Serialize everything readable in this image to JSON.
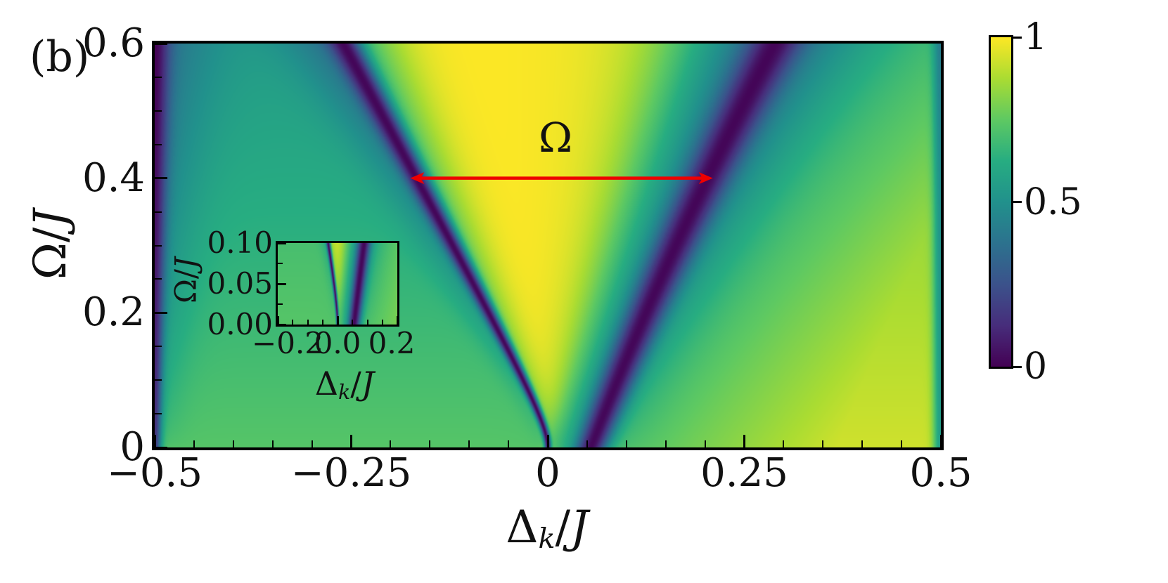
{
  "figure": {
    "panel_label": "(b)",
    "background": "#ffffff"
  },
  "chart_data": {
    "type": "heatmap",
    "title": "",
    "xlabel": {
      "base": "Δ",
      "sub": "k",
      "slash": "/",
      "unit": "J"
    },
    "ylabel": {
      "base": "Ω",
      "slash": "/",
      "unit": "J"
    },
    "x_range": [
      -0.5,
      0.5
    ],
    "y_range": [
      0,
      0.6
    ],
    "value_range": [
      0,
      1
    ],
    "grid": false,
    "x_ticks": {
      "values": [
        -0.5,
        -0.25,
        0,
        0.25,
        0.5
      ],
      "labels": [
        "−0.5",
        "−0.25",
        "0",
        "0.25",
        "0.5"
      ],
      "minor_step": 0.05
    },
    "y_ticks": {
      "values": [
        0,
        0.2,
        0.4,
        0.6
      ],
      "labels": [
        "0",
        "0.2",
        "0.4",
        "0.6"
      ],
      "minor_step": 0.05
    },
    "colorbar": {
      "range": [
        0,
        1
      ],
      "tick_values": [
        1,
        0.5,
        0
      ],
      "tick_labels": [
        "1",
        "0.5",
        "0"
      ],
      "colormap": "viridis",
      "stops": [
        "#440154",
        "#472d7b",
        "#3b528b",
        "#2c728e",
        "#21918c",
        "#27ad81",
        "#5ec962",
        "#aadc32",
        "#fde725"
      ]
    },
    "annotation": {
      "text": "Ω",
      "text_color": "#111111",
      "arrow": {
        "y": 0.4,
        "x_from": -0.175,
        "x_to": 0.21,
        "color": "#ee0000"
      }
    },
    "inset": {
      "xlabel": {
        "base": "Δ",
        "sub": "k",
        "slash": "/",
        "unit": "J"
      },
      "ylabel": {
        "base": "Ω",
        "slash": "/",
        "unit": "J"
      },
      "x_range": [
        -0.2,
        0.2
      ],
      "y_range": [
        0,
        0.1
      ],
      "x_ticks": {
        "values": [
          -0.2,
          0,
          0.2
        ],
        "labels": [
          "−0.2",
          "0.0",
          "0.2"
        ],
        "minor_step": 0.05
      },
      "y_ticks": {
        "values": [
          0,
          0.05,
          0.1
        ],
        "labels": [
          "0.00",
          "0.05",
          "0.10"
        ],
        "minor_step": 0.025
      }
    },
    "features": {
      "description": "Viridis heatmap, value 0-1. Bright yellow ridge (value ~1) opens upward from the origin between two dark resonance bands (value ~0) that form an asymmetric V converging at (0,0). Dark strip along the left edge at Delta_k=-0.5; faint teal dip at the right edge Delta_k=+0.5. Background green (~0.7) becoming teal near the bands at larger Omega and brighter yellow-green (~0.9) at the far right.",
      "left_band": "Delta_k = -0.47*Omega^2/(Omega+0.05)",
      "right_band": "Delta_k = 0.055 + 0.33*Omega + 0.10*Omega^2",
      "red_arrow": "spans the two dark bands at Omega/J = 0.4, labeled Omega"
    },
    "field_params": {
      "bandL": {
        "c": 0.47,
        "s": 0.05,
        "sigma0": 0.004,
        "sigma1": 0.027,
        "depth": 0.97,
        "haloMult": 3.5,
        "haloDepth": 0.35
      },
      "bandR": {
        "a": 0.055,
        "b": 0.33,
        "q": 0.1,
        "sigma0": 0.02,
        "sigma1": 0.022,
        "depth": 0.97,
        "haloMult": 3.0,
        "haloDepth": 0.32
      },
      "edgeL": {
        "x": -0.5,
        "sigma0": 0.008,
        "sigma1": 0.018,
        "depth0": 0.78,
        "depth1": 1.0,
        "haloMult": 4.0,
        "haloDepth": 0.3
      },
      "edgeR": {
        "x": 0.5,
        "sigma": 0.01,
        "depth": 0.4
      },
      "wedge": {
        "slope": 0.3,
        "tl0": 0.004,
        "tl1": 0.012,
        "tr0": 0.008,
        "tr1": 0.06
      },
      "bg": {
        "left0": 0.73,
        "leftSlope": 0.18,
        "rightBase": 0.68,
        "rightGrad": 0.8,
        "rightCap": 0.93,
        "rightOmega": 0.15,
        "rightFloor": 0.3
      },
      "omega_max": 0.6
    }
  }
}
